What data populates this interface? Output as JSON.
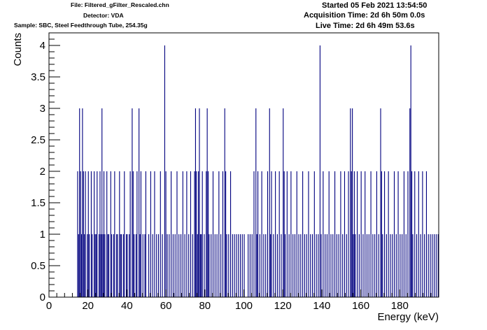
{
  "header": {
    "file_line": "File: Filtered_gFilter_Rescaled.chn",
    "detector_line": "Detector: VDA",
    "sample_line": "Sample: SBC, Steel Feedthrough Tube, 254.35g",
    "started_line": "Started 05 Feb 2021 13:54:50",
    "acquisition_line": "Acquisition Time: 2d 6h 50m 0.0s",
    "live_line": "Live Time: 2d 6h 49m 53.6s"
  },
  "colors": {
    "series": "#00007f",
    "axis": "#000000",
    "background": "#ffffff"
  },
  "chart_data": {
    "type": "bar",
    "style": "histogram",
    "xlabel": "Energy (keV)",
    "ylabel": "Counts",
    "xlim": [
      0,
      200
    ],
    "ylim": [
      0,
      4.2
    ],
    "x_ticks": [
      0,
      20,
      40,
      60,
      80,
      100,
      120,
      140,
      160,
      180
    ],
    "x_tick_labels": [
      "0",
      "20",
      "40",
      "60",
      "80",
      "100",
      "120",
      "140",
      "160",
      "180"
    ],
    "y_ticks": [
      0,
      0.5,
      1,
      1.5,
      2,
      2.5,
      3,
      3.5,
      4
    ],
    "y_tick_labels": [
      "0",
      "0.5",
      "1",
      "1.5",
      "2",
      "2.5",
      "3",
      "3.5",
      "4"
    ],
    "bin_width_keV": 0.4,
    "grid": false,
    "legend": "none",
    "series": [
      {
        "values": [
          [
            14.5,
            2
          ],
          [
            15.0,
            1
          ],
          [
            15.5,
            3
          ],
          [
            16.0,
            2
          ],
          [
            16.5,
            1
          ],
          [
            17.0,
            3
          ],
          [
            17.5,
            2
          ],
          [
            18.0,
            1
          ],
          [
            18.5,
            2
          ],
          [
            19.5,
            1
          ],
          [
            20.0,
            2
          ],
          [
            20.5,
            1
          ],
          [
            21.5,
            2
          ],
          [
            22.0,
            1
          ],
          [
            23.0,
            2
          ],
          [
            23.5,
            1
          ],
          [
            24.0,
            1
          ],
          [
            24.5,
            2
          ],
          [
            25.5,
            1
          ],
          [
            26.0,
            2
          ],
          [
            26.5,
            1
          ],
          [
            27.0,
            3
          ],
          [
            27.5,
            1
          ],
          [
            28.0,
            2
          ],
          [
            28.5,
            1
          ],
          [
            29.5,
            2
          ],
          [
            30.0,
            1
          ],
          [
            30.5,
            1
          ],
          [
            31.5,
            2
          ],
          [
            32.0,
            1
          ],
          [
            33.0,
            1
          ],
          [
            33.5,
            2
          ],
          [
            34.5,
            1
          ],
          [
            35.0,
            1
          ],
          [
            36.0,
            2
          ],
          [
            36.5,
            1
          ],
          [
            37.0,
            1
          ],
          [
            38.0,
            1
          ],
          [
            38.5,
            2
          ],
          [
            39.5,
            1
          ],
          [
            40.0,
            1
          ],
          [
            41.0,
            1
          ],
          [
            41.5,
            2
          ],
          [
            42.5,
            3
          ],
          [
            43.0,
            2
          ],
          [
            43.5,
            1
          ],
          [
            44.5,
            1
          ],
          [
            45.0,
            2
          ],
          [
            46.0,
            3
          ],
          [
            46.5,
            1
          ],
          [
            47.0,
            2
          ],
          [
            48.0,
            1
          ],
          [
            49.0,
            1
          ],
          [
            49.5,
            2
          ],
          [
            51.0,
            1
          ],
          [
            52.0,
            2
          ],
          [
            53.0,
            1
          ],
          [
            54.0,
            2
          ],
          [
            55.0,
            1
          ],
          [
            56.0,
            1
          ],
          [
            57.0,
            2
          ],
          [
            58.0,
            1
          ],
          [
            59.2,
            4
          ],
          [
            59.8,
            2
          ],
          [
            60.5,
            1
          ],
          [
            61.5,
            1
          ],
          [
            62.5,
            2
          ],
          [
            63.5,
            1
          ],
          [
            64.5,
            1
          ],
          [
            65.5,
            2
          ],
          [
            66.5,
            1
          ],
          [
            67.5,
            1
          ],
          [
            68.5,
            2
          ],
          [
            69.5,
            1
          ],
          [
            70.5,
            2
          ],
          [
            71.5,
            1
          ],
          [
            72.5,
            2
          ],
          [
            73.5,
            1
          ],
          [
            74.5,
            2
          ],
          [
            75.0,
            3
          ],
          [
            75.5,
            2
          ],
          [
            76.0,
            1
          ],
          [
            76.5,
            2
          ],
          [
            77.0,
            3
          ],
          [
            77.5,
            1
          ],
          [
            78.0,
            1
          ],
          [
            78.5,
            2
          ],
          [
            79.5,
            1
          ],
          [
            80.5,
            2
          ],
          [
            81.0,
            3
          ],
          [
            81.5,
            2
          ],
          [
            82.0,
            1
          ],
          [
            83.0,
            1
          ],
          [
            84.0,
            2
          ],
          [
            85.0,
            1
          ],
          [
            86.0,
            1
          ],
          [
            87.0,
            2
          ],
          [
            88.0,
            1
          ],
          [
            89.0,
            2
          ],
          [
            90.0,
            3
          ],
          [
            90.5,
            2
          ],
          [
            91.0,
            1
          ],
          [
            92.0,
            1
          ],
          [
            93.0,
            2
          ],
          [
            94.0,
            1
          ],
          [
            95.0,
            1
          ],
          [
            96.0,
            1
          ],
          [
            97.0,
            1
          ],
          [
            98.0,
            1
          ],
          [
            99.0,
            1
          ],
          [
            100.0,
            1
          ],
          [
            102.0,
            1
          ],
          [
            103.0,
            1
          ],
          [
            104.0,
            1
          ],
          [
            105.0,
            2
          ],
          [
            106.0,
            3
          ],
          [
            106.5,
            1
          ],
          [
            107.0,
            2
          ],
          [
            108.0,
            1
          ],
          [
            109.0,
            2
          ],
          [
            110.0,
            1
          ],
          [
            111.0,
            1
          ],
          [
            112.0,
            2
          ],
          [
            113.0,
            3
          ],
          [
            113.5,
            1
          ],
          [
            114.0,
            2
          ],
          [
            115.0,
            1
          ],
          [
            116.0,
            2
          ],
          [
            117.0,
            1
          ],
          [
            118.0,
            2
          ],
          [
            119.0,
            1
          ],
          [
            120.0,
            3
          ],
          [
            120.5,
            2
          ],
          [
            121.0,
            1
          ],
          [
            122.0,
            2
          ],
          [
            123.0,
            1
          ],
          [
            124.0,
            2
          ],
          [
            125.0,
            1
          ],
          [
            126.0,
            1
          ],
          [
            127.0,
            2
          ],
          [
            128.0,
            1
          ],
          [
            129.0,
            1
          ],
          [
            130.0,
            2
          ],
          [
            131.0,
            1
          ],
          [
            132.0,
            1
          ],
          [
            133.0,
            2
          ],
          [
            134.0,
            1
          ],
          [
            135.0,
            1
          ],
          [
            136.0,
            2
          ],
          [
            137.0,
            1
          ],
          [
            138.0,
            1
          ],
          [
            138.9,
            4
          ],
          [
            139.5,
            1
          ],
          [
            140.5,
            2
          ],
          [
            141.5,
            1
          ],
          [
            142.5,
            1
          ],
          [
            143.5,
            2
          ],
          [
            144.5,
            1
          ],
          [
            145.5,
            1
          ],
          [
            146.5,
            2
          ],
          [
            147.5,
            1
          ],
          [
            148.5,
            1
          ],
          [
            149.5,
            2
          ],
          [
            150.5,
            1
          ],
          [
            151.5,
            2
          ],
          [
            152.5,
            1
          ],
          [
            153.5,
            2
          ],
          [
            154.5,
            3
          ],
          [
            155.0,
            2
          ],
          [
            155.5,
            3
          ],
          [
            156.0,
            1
          ],
          [
            156.5,
            2
          ],
          [
            157.0,
            1
          ],
          [
            158.0,
            2
          ],
          [
            159.0,
            1
          ],
          [
            160.0,
            2
          ],
          [
            161.0,
            1
          ],
          [
            162.0,
            2
          ],
          [
            163.0,
            1
          ],
          [
            164.0,
            1
          ],
          [
            165.0,
            2
          ],
          [
            166.0,
            1
          ],
          [
            167.0,
            1
          ],
          [
            168.0,
            2
          ],
          [
            169.0,
            1
          ],
          [
            170.0,
            3
          ],
          [
            170.5,
            2
          ],
          [
            171.0,
            1
          ],
          [
            172.0,
            2
          ],
          [
            173.0,
            1
          ],
          [
            174.0,
            2
          ],
          [
            175.0,
            1
          ],
          [
            176.0,
            1
          ],
          [
            177.0,
            2
          ],
          [
            178.0,
            1
          ],
          [
            179.0,
            2
          ],
          [
            180.0,
            1
          ],
          [
            181.0,
            1
          ],
          [
            182.0,
            2
          ],
          [
            183.0,
            1
          ],
          [
            184.0,
            2
          ],
          [
            185.0,
            3
          ],
          [
            185.5,
            4
          ],
          [
            186.0,
            2
          ],
          [
            186.5,
            1
          ],
          [
            187.5,
            2
          ],
          [
            188.5,
            1
          ],
          [
            189.5,
            2
          ],
          [
            190.5,
            1
          ],
          [
            191.5,
            2
          ],
          [
            192.5,
            1
          ],
          [
            193.5,
            2
          ],
          [
            194.5,
            1
          ],
          [
            195.5,
            1
          ],
          [
            196.5,
            1
          ],
          [
            197.5,
            1
          ],
          [
            198.5,
            1
          ],
          [
            199.5,
            1
          ]
        ]
      }
    ]
  }
}
